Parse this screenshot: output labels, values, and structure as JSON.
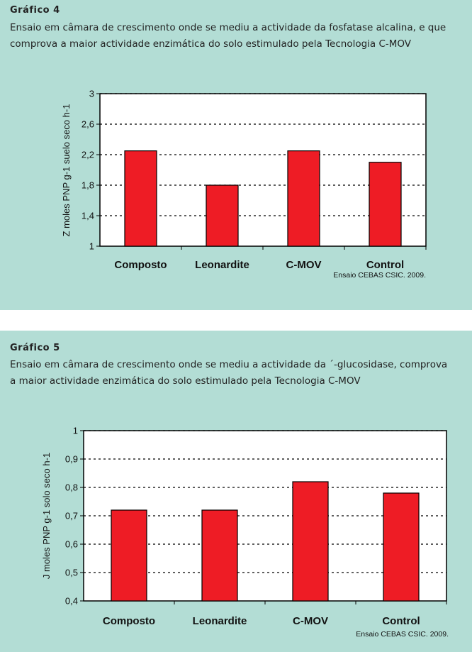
{
  "charts": [
    {
      "label": "Gráfico 4",
      "description": "Ensaio em câmara de crescimento onde se mediu a actividade da fosfatase alcalina, e que comprova a maior actividade enzimática do solo estimulado pela Tecnologia C-MOV",
      "source": "Ensaio CEBAS CSIC. 2009."
    },
    {
      "label": "Gráfico 5",
      "description": "Ensaio em câmara de crescimento onde se mediu a actividade da ´-glucosidase, comprova a maior actividade enzimática do solo estimulado pela Tecnologia C-MOV",
      "source": "Ensaio CEBAS CSIC. 2009."
    }
  ],
  "chart_data": [
    {
      "type": "bar",
      "categories": [
        "Composto",
        "Leonardite",
        "C-MOV",
        "Control"
      ],
      "values": [
        2.25,
        1.8,
        2.25,
        2.1
      ],
      "ylabel": "Z moles PNP g-1  suelo seco h-1",
      "ylim": [
        1,
        3
      ],
      "yticks": [
        "1",
        "1,4",
        "1,8",
        "2,2",
        "2,6",
        "3"
      ],
      "ytick_values": [
        1,
        1.4,
        1.8,
        2.2,
        2.6,
        3
      ],
      "grid": true,
      "bar_color": "#ee1c25"
    },
    {
      "type": "bar",
      "categories": [
        "Composto",
        "Leonardite",
        "C-MOV",
        "Control"
      ],
      "values": [
        0.72,
        0.72,
        0.82,
        0.78
      ],
      "ylabel": "J moles PNP g-1  solo seco h-1",
      "ylim": [
        0.4,
        1
      ],
      "yticks": [
        "0,4",
        "0,5",
        "0,6",
        "0,7",
        "0,8",
        "0,9",
        "1"
      ],
      "ytick_values": [
        0.4,
        0.5,
        0.6,
        0.7,
        0.8,
        0.9,
        1
      ],
      "grid": true,
      "bar_color": "#ee1c25"
    }
  ]
}
